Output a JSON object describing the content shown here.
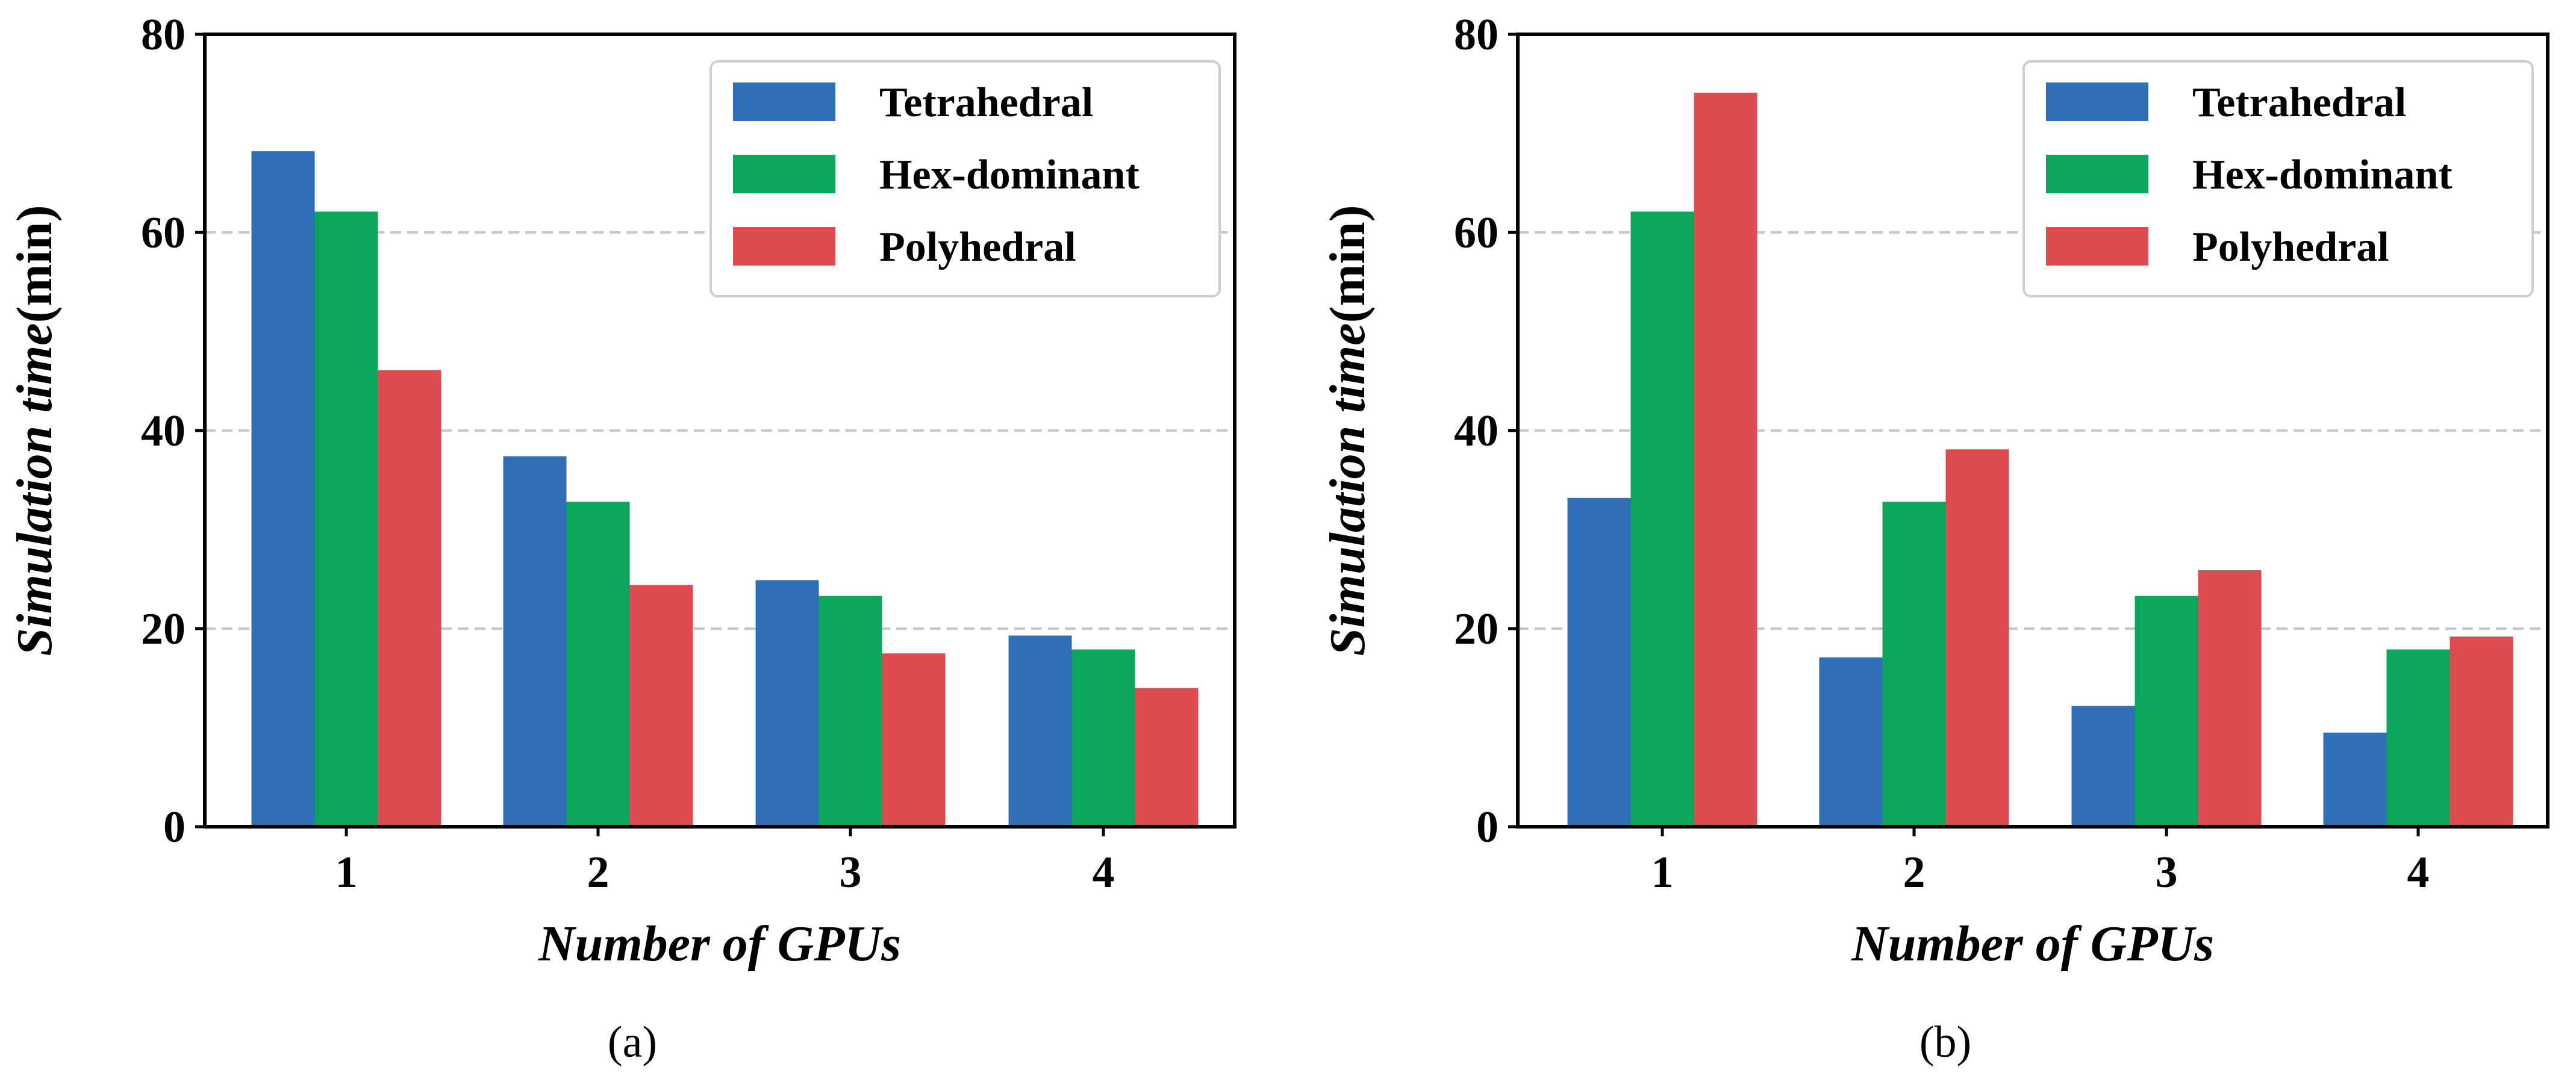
{
  "chart_data": [
    {
      "type": "bar",
      "panel_label": "(a)",
      "categories": [
        "1",
        "2",
        "3",
        "4"
      ],
      "series": [
        {
          "name": "Tetrahedral",
          "color": "#2e6fb5",
          "values": [
            68.2,
            37.4,
            24.9,
            19.3
          ]
        },
        {
          "name": "Hex-dominant",
          "color": "#0aa65a",
          "values": [
            62.1,
            32.8,
            23.3,
            17.9
          ]
        },
        {
          "name": "Polyhedral",
          "color": "#e04b50",
          "values": [
            46.1,
            24.4,
            17.5,
            14.0
          ]
        }
      ],
      "xlabel": "Number of GPUs",
      "ylabel_italic": "Simulation time",
      "ylabel_unit": "(min)",
      "ylim": [
        0,
        80
      ],
      "yticks": [
        0,
        20,
        40,
        60,
        80
      ],
      "grid": "horizontal dashed",
      "legend": "top-right"
    },
    {
      "type": "bar",
      "panel_label": "(b)",
      "categories": [
        "1",
        "2",
        "3",
        "4"
      ],
      "series": [
        {
          "name": "Tetrahedral",
          "color": "#2e6fb5",
          "values": [
            33.2,
            17.1,
            12.2,
            9.5
          ]
        },
        {
          "name": "Hex-dominant",
          "color": "#0aa65a",
          "values": [
            62.1,
            32.8,
            23.3,
            17.9
          ]
        },
        {
          "name": "Polyhedral",
          "color": "#e04b50",
          "values": [
            74.1,
            38.1,
            25.9,
            19.2
          ]
        }
      ],
      "xlabel": "Number of GPUs",
      "ylabel_italic": "Simulation time",
      "ylabel_unit": "(min)",
      "ylim": [
        0,
        80
      ],
      "yticks": [
        0,
        20,
        40,
        60,
        80
      ],
      "grid": "horizontal dashed",
      "legend": "top-right"
    }
  ]
}
